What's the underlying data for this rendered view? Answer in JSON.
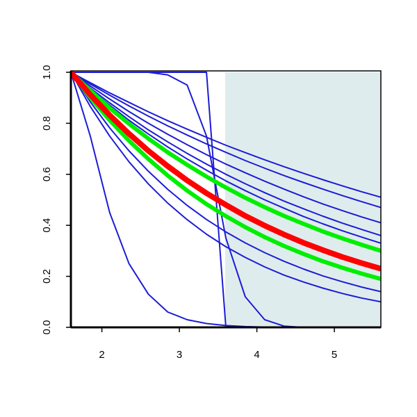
{
  "chart_data": {
    "type": "line",
    "x": [
      1.6,
      1.85,
      2.1,
      2.35,
      2.6,
      2.85,
      3.1,
      3.35,
      3.6,
      3.85,
      4.1,
      4.35,
      4.6,
      4.85,
      5.1,
      5.35,
      5.6
    ],
    "series": [
      {
        "color": "#1c1cd6",
        "width": 2,
        "values": [
          1,
          0.959,
          0.919,
          0.882,
          0.845,
          0.81,
          0.777,
          0.745,
          0.714,
          0.685,
          0.657,
          0.63,
          0.604,
          0.579,
          0.555,
          0.532,
          0.51
        ]
      },
      {
        "color": "#1c1cd6",
        "width": 2,
        "values": [
          1,
          0.954,
          0.91,
          0.868,
          0.828,
          0.79,
          0.754,
          0.719,
          0.686,
          0.654,
          0.624,
          0.595,
          0.568,
          0.542,
          0.517,
          0.493,
          0.47
        ]
      },
      {
        "color": "#1c1cd6",
        "width": 2,
        "values": [
          1,
          0.946,
          0.895,
          0.846,
          0.8,
          0.757,
          0.716,
          0.677,
          0.64,
          0.606,
          0.573,
          0.542,
          0.512,
          0.484,
          0.458,
          0.433,
          0.41
        ]
      },
      {
        "color": "#1c1cd6",
        "width": 2,
        "values": [
          1,
          0.938,
          0.88,
          0.826,
          0.774,
          0.727,
          0.682,
          0.64,
          0.6,
          0.563,
          0.528,
          0.495,
          0.465,
          0.436,
          0.409,
          0.384,
          0.36
        ]
      },
      {
        "color": "#1c1cd6",
        "width": 2,
        "values": [
          1,
          0.933,
          0.871,
          0.812,
          0.758,
          0.707,
          0.66,
          0.616,
          0.574,
          0.536,
          0.5,
          0.467,
          0.435,
          0.406,
          0.379,
          0.354,
          0.33
        ]
      },
      {
        "color": "#1c1cd6",
        "width": 2,
        "values": [
          1,
          0.884,
          0.782,
          0.692,
          0.612,
          0.541,
          0.478,
          0.423,
          0.374,
          0.331,
          0.293,
          0.259,
          0.229,
          0.202,
          0.179,
          0.158,
          0.14
        ]
      },
      {
        "color": "#1c1cd6",
        "width": 2,
        "values": [
          1,
          0.866,
          0.75,
          0.649,
          0.562,
          0.487,
          0.422,
          0.365,
          0.316,
          0.274,
          0.237,
          0.205,
          0.178,
          0.154,
          0.133,
          0.115,
          0.1
        ]
      },
      {
        "color": "#1c1cd6",
        "width": 2,
        "values": [
          1,
          0.75,
          0.45,
          0.25,
          0.13,
          0.06,
          0.03,
          0.015,
          0.007,
          0.003,
          0.001,
          0,
          0,
          0,
          0,
          0,
          0
        ]
      },
      {
        "color": "#1c1cd6",
        "width": 2,
        "values": [
          1,
          1,
          1,
          1,
          1,
          1,
          1,
          1,
          0,
          0,
          0,
          0,
          0,
          0,
          0,
          0,
          0
        ]
      },
      {
        "color": "#1c1cd6",
        "width": 2,
        "values": [
          1,
          1,
          1,
          1,
          1,
          0.99,
          0.95,
          0.75,
          0.35,
          0.12,
          0.03,
          0.005,
          0,
          0,
          0,
          0,
          0
        ]
      },
      {
        "color": "#00ee00",
        "width": 6,
        "values": [
          1,
          0.928,
          0.86,
          0.798,
          0.74,
          0.686,
          0.637,
          0.591,
          0.548,
          0.508,
          0.471,
          0.437,
          0.406,
          0.376,
          0.349,
          0.324,
          0.3
        ]
      },
      {
        "color": "#00ee00",
        "width": 6,
        "values": [
          1,
          0.901,
          0.812,
          0.732,
          0.66,
          0.595,
          0.536,
          0.483,
          0.436,
          0.393,
          0.354,
          0.319,
          0.288,
          0.259,
          0.234,
          0.211,
          0.19
        ]
      },
      {
        "color": "#ff0000",
        "width": 8,
        "values": [
          1,
          0.912,
          0.832,
          0.759,
          0.692,
          0.632,
          0.576,
          0.526,
          0.48,
          0.437,
          0.399,
          0.364,
          0.332,
          0.303,
          0.276,
          0.252,
          0.23
        ]
      }
    ],
    "shaded_region": {
      "x": [
        3.59,
        5.6
      ],
      "color": "#dfeced"
    },
    "xlim": [
      1.6,
      5.6
    ],
    "xticks": [
      2,
      3,
      4,
      5
    ],
    "ylim": [
      0,
      1
    ],
    "yticks": [
      {
        "value": 0,
        "label": "0.0"
      },
      {
        "value": 0.2,
        "label": "0.2"
      },
      {
        "value": 0.4,
        "label": "0.4"
      },
      {
        "value": 0.6,
        "label": "0.6"
      },
      {
        "value": 0.8,
        "label": "0.8"
      },
      {
        "value": 1,
        "label": "1.0"
      }
    ]
  }
}
